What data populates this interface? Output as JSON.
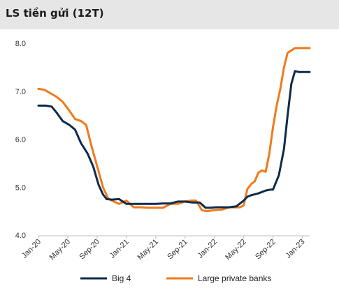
{
  "title": "LS tiền gửi (12T)",
  "colors": {
    "big4": "#0f2a4a",
    "private": "#f07a1a",
    "title_bg": "#e6e6e6",
    "axis": "#bfbfbf"
  },
  "chart_data": {
    "type": "line",
    "title": "LS tiền gửi (12T)",
    "xlabel": "",
    "ylabel": "",
    "ylim": [
      4.0,
      8.0
    ],
    "yticks": [
      "4.0",
      "5.0",
      "6.0",
      "7.0",
      "8.0"
    ],
    "xrange": [
      0,
      37
    ],
    "xticks": [
      {
        "label": "Jan-20",
        "x": 0
      },
      {
        "label": "May-20",
        "x": 4
      },
      {
        "label": "Sep-20",
        "x": 8
      },
      {
        "label": "Jan-21",
        "x": 12
      },
      {
        "label": "May-21",
        "x": 16
      },
      {
        "label": "Sep-21",
        "x": 20
      },
      {
        "label": "Jan-22",
        "x": 24
      },
      {
        "label": "May-22",
        "x": 28
      },
      {
        "label": "Sep-22",
        "x": 32
      },
      {
        "label": "Jan-23",
        "x": 36
      }
    ],
    "grid": false,
    "legend_position": "bottom",
    "series": [
      {
        "name": "Big 4",
        "x": [
          0,
          1,
          1.8,
          2.5,
          3.3,
          4.2,
          5,
          5.8,
          6.7,
          7.5,
          8.2,
          8.8,
          9.3,
          10,
          11,
          12,
          13,
          14,
          15,
          16,
          17,
          18,
          19,
          20,
          21,
          22,
          22.8,
          23.5,
          24.2,
          25,
          26,
          27,
          28,
          28.5,
          29,
          30,
          31,
          31.7,
          32,
          32.8,
          33.5,
          34,
          34.5,
          35,
          35.5,
          36,
          37
        ],
        "values": [
          6.7,
          6.7,
          6.68,
          6.55,
          6.38,
          6.3,
          6.2,
          5.92,
          5.7,
          5.42,
          5.05,
          4.85,
          4.75,
          4.74,
          4.75,
          4.65,
          4.65,
          4.65,
          4.65,
          4.65,
          4.66,
          4.66,
          4.7,
          4.7,
          4.68,
          4.68,
          4.57,
          4.57,
          4.58,
          4.58,
          4.58,
          4.6,
          4.72,
          4.8,
          4.83,
          4.87,
          4.93,
          4.95,
          4.95,
          5.25,
          5.8,
          6.5,
          7.15,
          7.42,
          7.4,
          7.4,
          7.4
        ]
      },
      {
        "name": "Large private banks",
        "x": [
          0,
          0.8,
          1.5,
          2.5,
          3.3,
          4.2,
          5,
          5.8,
          6.5,
          7.2,
          7.8,
          8.3,
          8.8,
          9.5,
          10,
          11,
          12,
          13,
          14,
          15,
          16,
          17,
          18,
          19,
          20,
          20.8,
          21.5,
          22.3,
          23,
          24,
          24.5,
          25,
          26,
          27,
          27.5,
          28,
          28.5,
          29,
          29.5,
          30,
          30.5,
          31,
          31.5,
          32,
          32.5,
          33,
          33.5,
          34,
          34.5,
          35,
          35.5,
          36,
          36.5,
          37
        ],
        "values": [
          7.05,
          7.03,
          6.97,
          6.88,
          6.78,
          6.6,
          6.42,
          6.38,
          6.3,
          5.88,
          5.55,
          5.28,
          5.0,
          4.77,
          4.72,
          4.65,
          4.72,
          4.58,
          4.58,
          4.57,
          4.57,
          4.57,
          4.65,
          4.65,
          4.7,
          4.72,
          4.72,
          4.52,
          4.5,
          4.52,
          4.53,
          4.53,
          4.58,
          4.58,
          4.58,
          4.62,
          4.96,
          5.06,
          5.12,
          5.3,
          5.35,
          5.32,
          5.7,
          6.25,
          6.7,
          7.05,
          7.5,
          7.8,
          7.85,
          7.9,
          7.9,
          7.9,
          7.9,
          7.9
        ]
      }
    ]
  }
}
